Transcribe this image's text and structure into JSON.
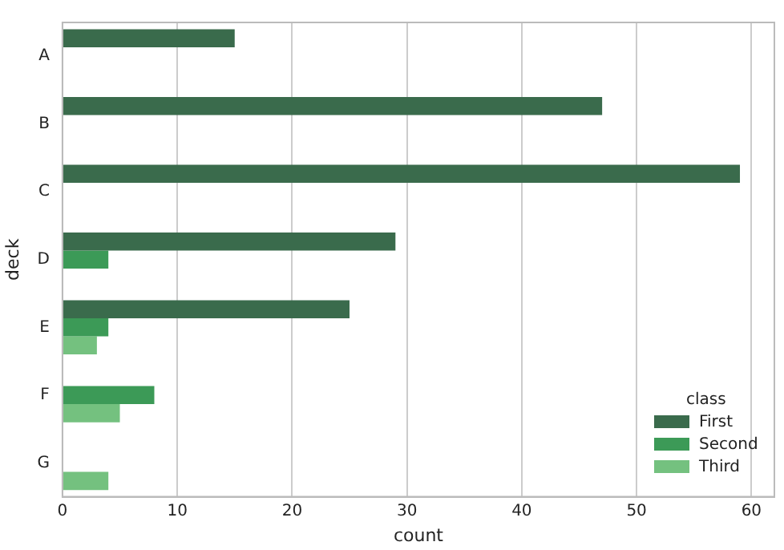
{
  "chart_data": {
    "type": "bar",
    "orientation": "horizontal",
    "xlabel": "count",
    "ylabel": "deck",
    "legend_title": "class",
    "categories": [
      "A",
      "B",
      "C",
      "D",
      "E",
      "F",
      "G"
    ],
    "series": [
      {
        "name": "First",
        "color": "#3a6b4c",
        "values": [
          15,
          47,
          59,
          29,
          25,
          0,
          0
        ]
      },
      {
        "name": "Second",
        "color": "#3c9a57",
        "values": [
          0,
          0,
          0,
          4,
          4,
          8,
          0
        ]
      },
      {
        "name": "Third",
        "color": "#74c17f",
        "values": [
          0,
          0,
          0,
          0,
          3,
          5,
          4
        ]
      }
    ],
    "xlim": [
      0,
      62
    ],
    "xticks": [
      0,
      10,
      20,
      30,
      40,
      50,
      60
    ],
    "grid": "x",
    "legend": "bottom right"
  }
}
